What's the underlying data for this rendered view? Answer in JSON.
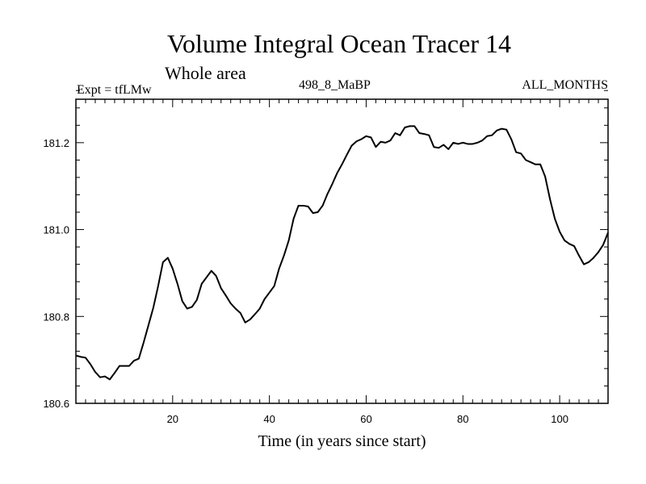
{
  "chart_data": {
    "type": "line",
    "title": "Volume Integral Ocean Tracer 14",
    "subtitle": "Whole area",
    "annotations": {
      "left": "Expt = tfLMw",
      "center": "498_8_MaBP",
      "right": "ALL_MONTHS"
    },
    "xlabel": "Time (in years since start)",
    "ylabel": "",
    "xlim": [
      0,
      110
    ],
    "ylim": [
      180.6,
      181.3
    ],
    "xticks": [
      20,
      40,
      60,
      80,
      100
    ],
    "yticks": [
      180.6,
      180.8,
      181.0,
      181.2
    ],
    "ytick_labels": [
      "180.6",
      "180.8",
      "181.0",
      "181.2"
    ],
    "grid": false,
    "legend": "none",
    "line_color": "#000000",
    "series": [
      {
        "x": [
          0,
          1,
          2,
          3,
          4,
          5,
          6,
          7,
          8,
          9,
          10,
          11,
          12,
          13,
          14,
          15,
          16,
          17,
          18,
          19,
          20,
          21,
          22,
          23,
          24,
          25,
          26,
          27,
          28,
          29,
          30,
          31,
          32,
          33,
          34,
          35,
          36,
          37,
          38,
          39,
          40,
          41,
          42,
          43,
          44,
          45,
          46,
          47,
          48,
          49,
          50,
          51,
          52,
          53,
          54,
          55,
          56,
          57,
          58,
          59,
          60,
          61,
          62,
          63,
          64,
          65,
          66,
          67,
          68,
          69,
          70,
          71,
          72,
          73,
          74,
          75,
          76,
          77,
          78,
          79,
          80,
          81,
          82,
          83,
          84,
          85,
          86,
          87,
          88,
          89,
          90,
          91,
          92,
          93,
          94,
          95,
          96,
          97,
          98,
          99,
          100,
          101,
          102,
          103,
          104,
          105,
          106,
          107,
          108,
          109,
          110
        ],
        "values": [
          180.71,
          180.707,
          180.705,
          180.69,
          180.672,
          180.66,
          180.662,
          180.655,
          180.67,
          180.686,
          180.686,
          180.686,
          180.698,
          180.703,
          180.74,
          180.78,
          180.82,
          180.87,
          180.925,
          180.935,
          180.91,
          180.875,
          180.835,
          180.818,
          180.822,
          180.838,
          180.875,
          180.89,
          180.905,
          180.893,
          180.865,
          180.848,
          180.83,
          180.818,
          180.808,
          180.786,
          180.793,
          180.805,
          180.818,
          180.84,
          180.855,
          180.87,
          180.91,
          180.94,
          180.975,
          181.025,
          181.055,
          181.055,
          181.053,
          181.038,
          181.04,
          181.055,
          181.082,
          181.105,
          181.13,
          181.15,
          181.172,
          181.193,
          181.203,
          181.208,
          181.215,
          181.212,
          181.19,
          181.202,
          181.2,
          181.205,
          181.222,
          181.217,
          181.235,
          181.238,
          181.238,
          181.222,
          181.22,
          181.217,
          181.19,
          181.188,
          181.195,
          181.185,
          181.2,
          181.197,
          181.2,
          181.197,
          181.197,
          181.2,
          181.205,
          181.215,
          181.217,
          181.228,
          181.232,
          181.23,
          181.208,
          181.178,
          181.175,
          181.16,
          181.155,
          181.15,
          181.15,
          181.122,
          181.07,
          181.025,
          180.995,
          180.975,
          180.967,
          180.962,
          180.94,
          180.92,
          180.925,
          180.935,
          180.948,
          180.965,
          180.993
        ]
      }
    ]
  }
}
